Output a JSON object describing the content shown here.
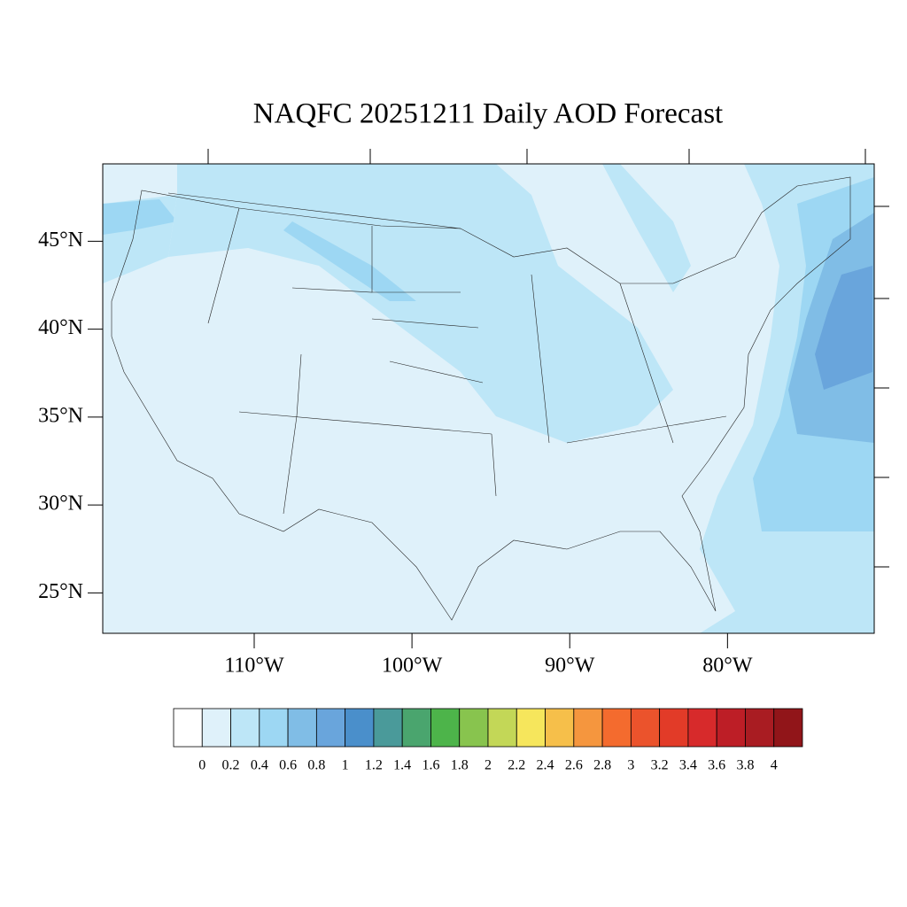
{
  "title": "NAQFC 20251211 Daily AOD Forecast",
  "map": {
    "lonlim": [
      -119.6,
      -70.7
    ],
    "latlim": [
      22.7,
      49.4
    ],
    "lat_ticks": [
      {
        "value": 45,
        "label": "45°N"
      },
      {
        "value": 40,
        "label": "40°N"
      },
      {
        "value": 35,
        "label": "35°N"
      },
      {
        "value": 30,
        "label": "30°N"
      },
      {
        "value": 25,
        "label": "25°N"
      }
    ],
    "lon_ticks": [
      {
        "value": -110,
        "label": "110°W"
      },
      {
        "value": -100,
        "label": "100°W"
      },
      {
        "value": -90,
        "label": "90°W"
      },
      {
        "value": -80,
        "label": "80°W"
      }
    ]
  },
  "colorbar": {
    "levels": [
      0,
      0.2,
      0.4,
      0.6,
      0.8,
      1,
      1.2,
      1.4,
      1.6,
      1.8,
      2,
      2.2,
      2.4,
      2.6,
      2.8,
      3,
      3.2,
      3.4,
      3.6,
      3.8,
      4
    ],
    "colors": [
      "#ffffff",
      "#dff1fa",
      "#bde6f7",
      "#9dd7f3",
      "#80bde6",
      "#69a5dc",
      "#4a8fcb",
      "#4a9a9a",
      "#4aa56e",
      "#4db44a",
      "#88c44e",
      "#c3d757",
      "#f6e65c",
      "#f6bf4a",
      "#f5963e",
      "#f46b2e",
      "#eb532c",
      "#e23b28",
      "#d72a2b",
      "#bd1e26",
      "#a91c22",
      "#911519"
    ]
  }
}
